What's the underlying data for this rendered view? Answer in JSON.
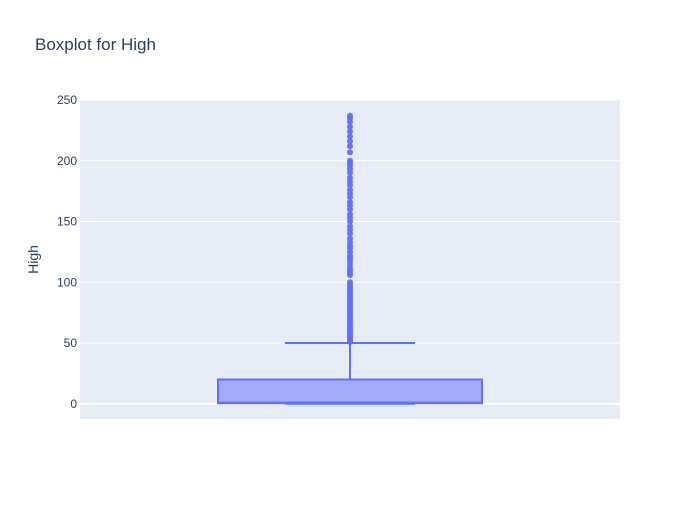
{
  "chart_data": {
    "type": "box",
    "title": "Boxplot for High",
    "xlabel": "",
    "ylabel": "High",
    "ylim": [
      -12.5,
      250
    ],
    "yticks": [
      0,
      50,
      100,
      150,
      200,
      250
    ],
    "grid": true,
    "legend": "none",
    "colors": {
      "plot_bg": "#e5ecf6",
      "grid": "#ffffff",
      "box_fill": "#a3abf9",
      "box_line": "#636efa",
      "text": "#2a3f5f"
    },
    "series": [
      {
        "min": 0,
        "q1": 0.5,
        "median": 1,
        "q3": 20,
        "upper_fence": 50,
        "outliers": [
          51,
          52,
          53,
          54,
          55,
          56,
          57,
          58,
          59,
          60,
          62,
          64,
          66,
          68,
          70,
          72,
          74,
          76,
          78,
          80,
          82,
          84,
          86,
          88,
          90,
          92,
          94,
          96,
          98,
          100,
          106,
          108,
          110,
          112,
          115,
          118,
          120,
          122,
          125,
          128,
          130,
          133,
          136,
          140,
          143,
          146,
          150,
          153,
          156,
          160,
          163,
          166,
          170,
          173,
          176,
          180,
          183,
          186,
          190,
          193,
          196,
          198,
          200,
          207,
          212,
          216,
          220,
          224,
          228,
          232,
          235,
          237
        ]
      }
    ]
  }
}
